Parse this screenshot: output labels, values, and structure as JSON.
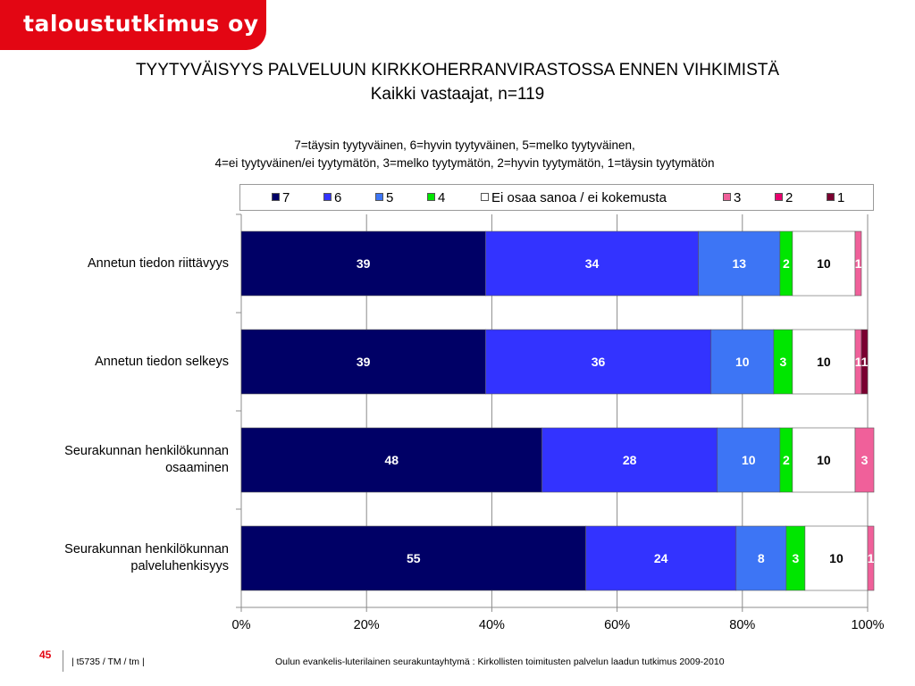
{
  "brand": {
    "logo_text": "taloustutkimus oy",
    "color": "#e30613"
  },
  "header": {
    "title": "TYYTYVÄISYYS PALVELUUN KIRKKOHERRANVIRASTOSSA ENNEN VIHKIMISTÄ",
    "subtitle": "Kaikki  vastaajat, n=119",
    "scale_line1": "7=täysin tyytyväinen, 6=hyvin tyytyväinen, 5=melko tyytyväinen,",
    "scale_line2": "4=ei tyytyväinen/ei tyytymätön, 3=melko tyytymätön, 2=hyvin tyytymätön, 1=täysin tyytymätön"
  },
  "chart_data": {
    "type": "bar",
    "orientation": "horizontal",
    "stacked": true,
    "legend_position": "top",
    "xlim": [
      0,
      100
    ],
    "x_ticks": [
      "0%",
      "20%",
      "40%",
      "60%",
      "80%",
      "100%"
    ],
    "grid": true,
    "categories": [
      "Annetun tiedon riittävyys",
      "Annetun tiedon selkeys",
      "Seurakunnan henkilökunnan osaaminen",
      "Seurakunnan henkilökunnan palveluhenkisyys"
    ],
    "series": [
      {
        "name": "7",
        "color": "#000066",
        "values": [
          39,
          39,
          48,
          55
        ],
        "labels": [
          "39",
          "39",
          "48",
          "55"
        ],
        "label_color": "#ffffff"
      },
      {
        "name": "6",
        "color": "#3333ff",
        "values": [
          34,
          36,
          28,
          24
        ],
        "labels": [
          "34",
          "36",
          "28",
          "24"
        ],
        "label_color": "#ffffff"
      },
      {
        "name": "5",
        "color": "#3d75f5",
        "values": [
          13,
          10,
          10,
          8
        ],
        "labels": [
          "13",
          "10",
          "10",
          "8"
        ],
        "label_color": "#ffffff"
      },
      {
        "name": "4",
        "color": "#00e600",
        "values": [
          2,
          3,
          2,
          3
        ],
        "labels": [
          "2",
          "3",
          "2",
          "3"
        ],
        "label_color": "#ffffff"
      },
      {
        "name": "Ei osaa sanoa / ei kokemusta",
        "color": "#ffffff",
        "values": [
          10,
          10,
          10,
          10
        ],
        "labels": [
          "10",
          "10",
          "10",
          "10"
        ],
        "label_color": "#000000"
      },
      {
        "name": "3",
        "color": "#f0609a",
        "values": [
          1,
          1,
          3,
          1
        ],
        "labels": [
          "1",
          "1",
          "3",
          "1"
        ],
        "label_color": "#ffffff"
      },
      {
        "name": "2",
        "color": "#e8006e",
        "values": [
          0,
          0,
          0,
          0
        ],
        "labels": [
          "",
          "",
          "",
          ""
        ],
        "label_color": "#ffffff"
      },
      {
        "name": "1",
        "color": "#7a0030",
        "values": [
          0,
          1,
          0,
          0
        ],
        "labels": [
          "",
          "1",
          "",
          ""
        ],
        "label_color": "#ffffff"
      }
    ]
  },
  "footer": {
    "page_number": "45",
    "left": "|  t5735 / TM / tm |",
    "right": "Oulun evankelis-luterilainen seurakuntayhtymä : Kirkollisten toimitusten palvelun laadun tutkimus 2009-2010"
  }
}
